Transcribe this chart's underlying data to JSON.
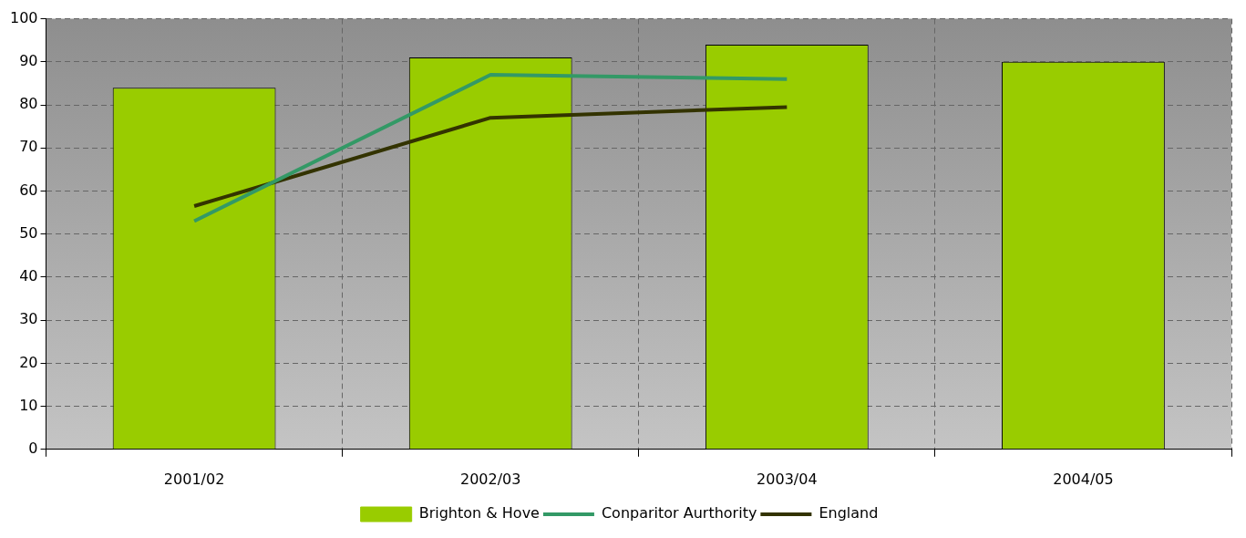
{
  "chart_data": {
    "type": "bar",
    "categories": [
      "2001/02",
      "2002/03",
      "2003/04",
      "2004/05"
    ],
    "series": [
      {
        "name": "Brighton & Hove",
        "type": "bar",
        "color": "#99cc00",
        "values": [
          84,
          91,
          94,
          90
        ]
      },
      {
        "name": "Conparitor Aurthority",
        "type": "line",
        "color": "#339966",
        "values": [
          53,
          87,
          86,
          null
        ]
      },
      {
        "name": "England",
        "type": "line",
        "color": "#333300",
        "values": [
          56.5,
          77,
          79.5,
          null
        ]
      }
    ],
    "ylim": [
      0,
      100
    ],
    "yticks": [
      0,
      10,
      20,
      30,
      40,
      50,
      60,
      70,
      80,
      90,
      100
    ],
    "grid": true,
    "legend": "bottom",
    "marker": "none",
    "line_style": "solid"
  }
}
